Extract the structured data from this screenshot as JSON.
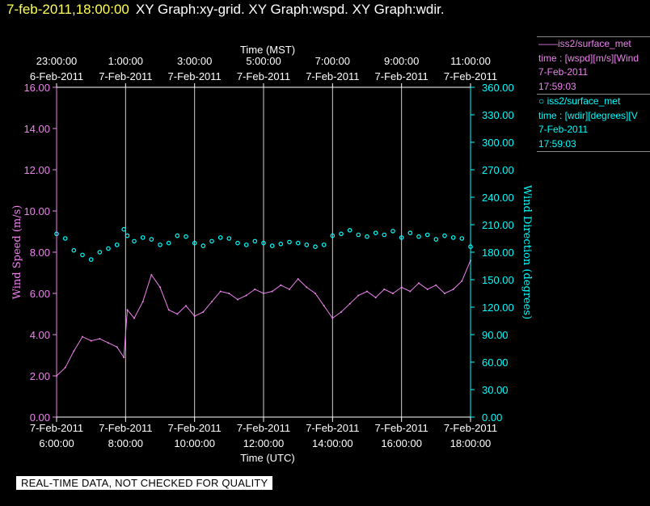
{
  "header": {
    "datetime": "7-feb-2011,18:00:00",
    "graphs": "XY Graph:xy-grid.  XY Graph:wspd.  XY Graph:wdir."
  },
  "legend": {
    "wspd": {
      "line1": "——iss2/surface_met",
      "line2": "time : [wspd][m/s][Wind",
      "line3": "7-Feb-2011",
      "line4": "17:59:03",
      "color": "#ee82ee"
    },
    "wdir": {
      "line1": "○ iss2/surface_met",
      "line2": "time : [wdir][degrees][V",
      "line3": "7-Feb-2011",
      "line4": "17:59:03",
      "color": "#00ffff"
    }
  },
  "qa_banner": "REAL-TIME DATA, NOT CHECKED FOR QUALITY",
  "chart_data": {
    "type": "line",
    "title": "",
    "xlabel_bottom": "Time (UTC)",
    "xlabel_top": "Time (MST)",
    "ylabel_left": "Wind Speed (m/s)",
    "ylabel_right": "Wind Direction (degrees)",
    "grid": true,
    "xlim_utc_hours": [
      6.0,
      18.0
    ],
    "ylim_left": [
      0,
      16
    ],
    "ylim_right": [
      0,
      360
    ],
    "bottom_ticks": [
      {
        "hour": 6,
        "date": "7-Feb-2011",
        "time": "6:00:00"
      },
      {
        "hour": 8,
        "date": "7-Feb-2011",
        "time": "8:00:00"
      },
      {
        "hour": 10,
        "date": "7-Feb-2011",
        "time": "10:00:00"
      },
      {
        "hour": 12,
        "date": "7-Feb-2011",
        "time": "12:00:00"
      },
      {
        "hour": 14,
        "date": "7-Feb-2011",
        "time": "14:00:00"
      },
      {
        "hour": 16,
        "date": "7-Feb-2011",
        "time": "16:00:00"
      },
      {
        "hour": 18,
        "date": "7-Feb-2011",
        "time": "18:00:00"
      }
    ],
    "top_ticks": [
      {
        "hour": 6,
        "time": "23:00:00",
        "date": "6-Feb-2011"
      },
      {
        "hour": 8,
        "time": "1:00:00",
        "date": "7-Feb-2011"
      },
      {
        "hour": 10,
        "time": "3:00:00",
        "date": "7-Feb-2011"
      },
      {
        "hour": 12,
        "time": "5:00:00",
        "date": "7-Feb-2011"
      },
      {
        "hour": 14,
        "time": "7:00:00",
        "date": "7-Feb-2011"
      },
      {
        "hour": 16,
        "time": "9:00:00",
        "date": "7-Feb-2011"
      },
      {
        "hour": 18,
        "time": "11:00:00",
        "date": "7-Feb-2011"
      }
    ],
    "left_ticks": [
      "0.00",
      "2.00",
      "4.00",
      "6.00",
      "8.00",
      "10.00",
      "12.00",
      "14.00",
      "16.00"
    ],
    "right_ticks": [
      "0.00",
      "30.00",
      "60.00",
      "90.00",
      "120.00",
      "150.00",
      "180.00",
      "210.00",
      "240.00",
      "270.00",
      "300.00",
      "330.00",
      "360.00"
    ],
    "series": [
      {
        "name": "iss2/surface_met wspd",
        "axis": "left",
        "style": "line",
        "color": "#ee82ee",
        "x": [
          6.0,
          6.25,
          6.5,
          6.75,
          7.0,
          7.25,
          7.5,
          7.75,
          7.95,
          8.05,
          8.25,
          8.5,
          8.75,
          9.0,
          9.25,
          9.5,
          9.75,
          10.0,
          10.25,
          10.5,
          10.75,
          11.0,
          11.25,
          11.5,
          11.75,
          12.0,
          12.25,
          12.5,
          12.75,
          13.0,
          13.25,
          13.5,
          13.75,
          14.0,
          14.25,
          14.5,
          14.75,
          15.0,
          15.25,
          15.5,
          15.75,
          16.0,
          16.25,
          16.5,
          16.75,
          17.0,
          17.25,
          17.5,
          17.75,
          18.0
        ],
        "y": [
          2.0,
          2.4,
          3.2,
          3.9,
          3.7,
          3.8,
          3.6,
          3.4,
          2.9,
          5.2,
          4.8,
          5.6,
          6.9,
          6.3,
          5.2,
          5.0,
          5.4,
          4.9,
          5.1,
          5.6,
          6.1,
          6.0,
          5.7,
          5.9,
          6.2,
          6.0,
          6.1,
          6.4,
          6.2,
          6.7,
          6.3,
          6.0,
          5.4,
          4.8,
          5.1,
          5.5,
          5.9,
          6.1,
          5.8,
          6.2,
          6.0,
          6.3,
          6.1,
          6.5,
          6.2,
          6.4,
          6.0,
          6.2,
          6.6,
          7.6
        ]
      },
      {
        "name": "iss2/surface_met wdir",
        "axis": "right",
        "style": "points",
        "color": "#00ffff",
        "x": [
          6.0,
          6.25,
          6.5,
          6.75,
          7.0,
          7.25,
          7.5,
          7.75,
          7.95,
          8.05,
          8.25,
          8.5,
          8.75,
          9.0,
          9.25,
          9.5,
          9.75,
          10.0,
          10.25,
          10.5,
          10.75,
          11.0,
          11.25,
          11.5,
          11.75,
          12.0,
          12.25,
          12.5,
          12.75,
          13.0,
          13.25,
          13.5,
          13.75,
          14.0,
          14.25,
          14.5,
          14.75,
          15.0,
          15.25,
          15.5,
          15.75,
          16.0,
          16.25,
          16.5,
          16.75,
          17.0,
          17.25,
          17.5,
          17.75,
          18.0
        ],
        "y": [
          200,
          195,
          182,
          177,
          172,
          180,
          184,
          188,
          205,
          198,
          192,
          196,
          194,
          188,
          190,
          198,
          197,
          190,
          187,
          192,
          196,
          195,
          190,
          188,
          192,
          190,
          187,
          189,
          191,
          190,
          188,
          186,
          188,
          198,
          200,
          204,
          199,
          197,
          201,
          199,
          203,
          196,
          201,
          197,
          199,
          194,
          198,
          196,
          195,
          186
        ]
      }
    ]
  }
}
